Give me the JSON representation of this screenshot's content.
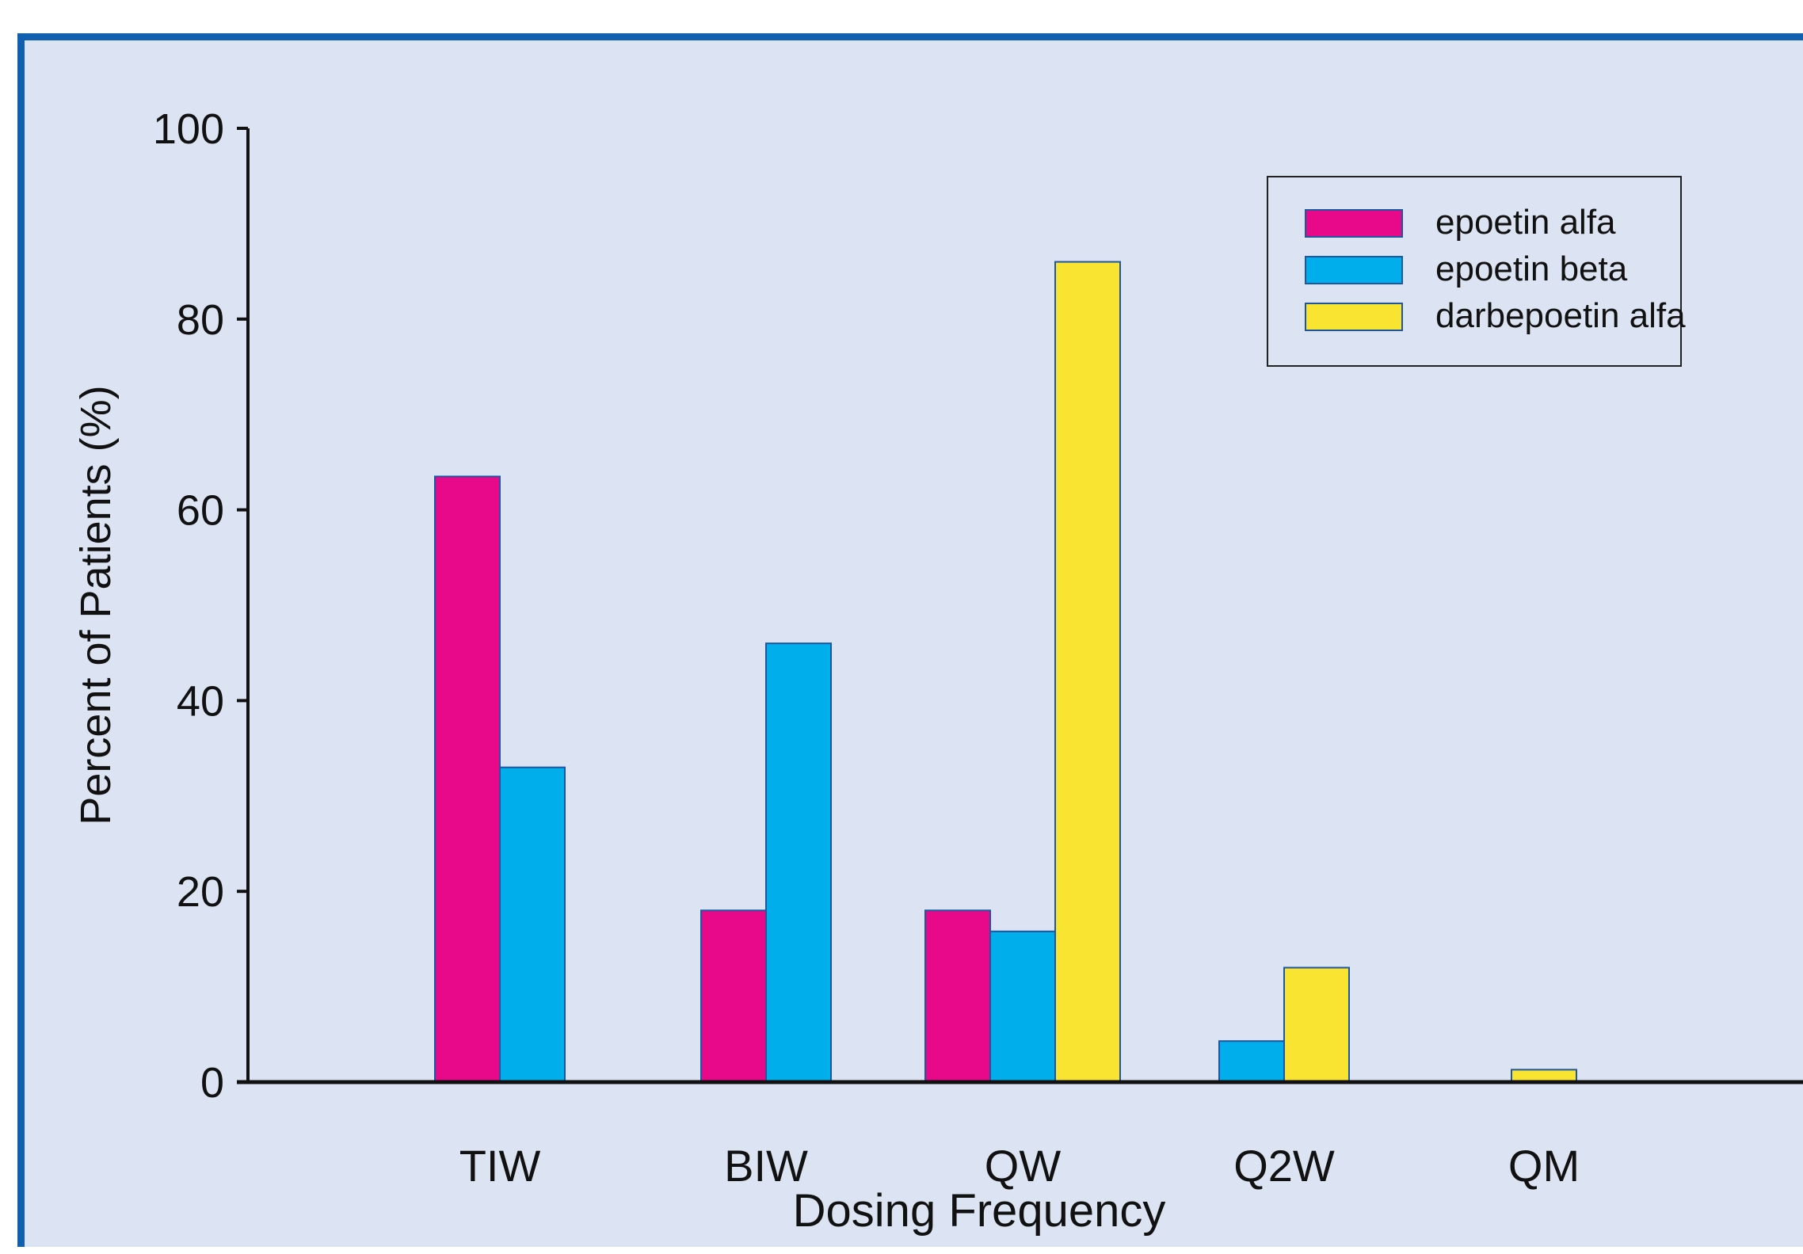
{
  "chart_data": {
    "type": "bar",
    "xlabel": "Dosing Frequency",
    "ylabel": "Percent of Patients (%)",
    "ylim": [
      0,
      100
    ],
    "yticks": [
      0,
      20,
      40,
      60,
      80,
      100
    ],
    "categories": [
      "TIW",
      "BIW",
      "QW",
      "Q2W",
      "QM"
    ],
    "series": [
      {
        "name": "epoetin alfa",
        "color": "#e8088a",
        "values": [
          63.5,
          18,
          18,
          null,
          null
        ]
      },
      {
        "name": "epoetin beta",
        "color": "#00aeeb",
        "values": [
          33,
          46,
          15.8,
          4.3,
          null
        ]
      },
      {
        "name": "darbepoetin alfa",
        "color": "#f9e431",
        "values": [
          null,
          null,
          86,
          12,
          1.3
        ]
      }
    ],
    "legend_position": "top-right",
    "grid": false
  }
}
